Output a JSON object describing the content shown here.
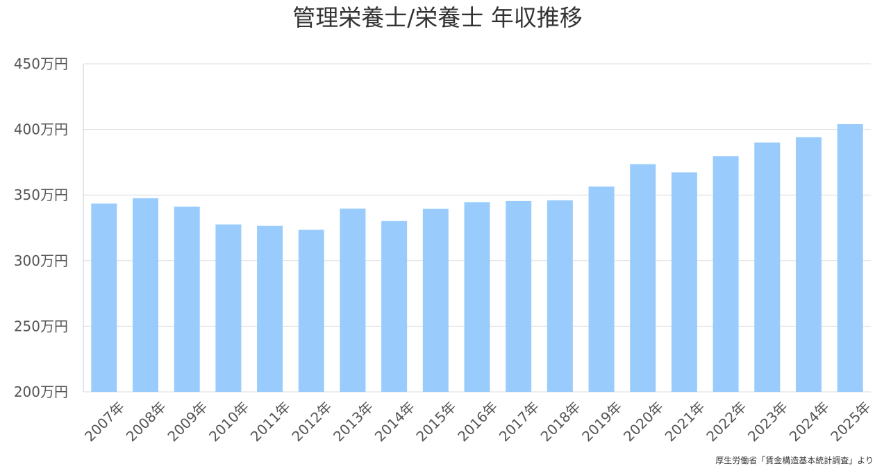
{
  "chart_data": {
    "type": "bar",
    "title": "管理栄養士/栄養士 年収推移",
    "categories": [
      "2007年",
      "2008年",
      "2009年",
      "2010年",
      "2011年",
      "2012年",
      "2013年",
      "2014年",
      "2015年",
      "2016年",
      "2017年",
      "2018年",
      "2019年",
      "2020年",
      "2021年",
      "2022年",
      "2023年",
      "2024年",
      "2025年"
    ],
    "values": [
      343.5,
      347.6,
      341.2,
      327.6,
      326.5,
      323.5,
      339.7,
      330.2,
      339.6,
      344.6,
      345.4,
      346.0,
      356.5,
      373.5,
      367.3,
      379.6,
      390.0,
      394.0,
      404.0
    ],
    "ylim": [
      200,
      450
    ],
    "yticks": [
      200,
      250,
      300,
      350,
      400,
      450
    ],
    "ytick_suffix": "万円",
    "grid": true,
    "bar_color": "#99ccfc",
    "source": "厚生労働省「賃金構造基本統計調査」より"
  }
}
